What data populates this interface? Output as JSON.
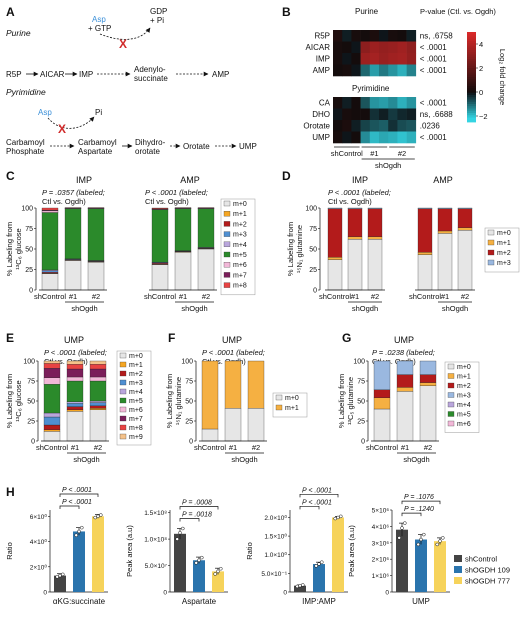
{
  "panels": {
    "A": {
      "letter": "A",
      "purine": {
        "title": "Purine",
        "asp": "Asp",
        "gtp": "+ GTP",
        "gdp": "GDP",
        "pi": "+ Pi",
        "r5p": "R5P",
        "aicar": "AICAR",
        "imp": "IMP",
        "adenylo1": "Adenylo-",
        "adenylo2": "succinate",
        "amp": "AMP"
      },
      "pyrimidine": {
        "title": "Pyrimidine",
        "asp": "Asp",
        "pi": "Pi",
        "carb1": "Carbamoyl",
        "carb2": "Phosphate",
        "ca1": "Carbamoyl",
        "ca2": "Aspartate",
        "dho1": "Dihydro-",
        "dho2": "orotate",
        "orotate": "Orotate",
        "ump": "UMP"
      },
      "x_mark": "X",
      "colors": {
        "asp": "#3a8fd8",
        "x": "#d12b2b"
      }
    },
    "B": {
      "letter": "B",
      "purine_title": "Purine",
      "pyrimidine_title": "Pyrimidine",
      "pvalue_header": "P-value (Ctl. vs. Ogdh)",
      "purine_rows": [
        {
          "label": "R5P",
          "p": "ns, .6758",
          "values": [
            0.3,
            -0.2,
            0.1,
            0.0,
            0.2,
            -0.1,
            0.1,
            0.0,
            -0.2
          ]
        },
        {
          "label": "AICAR",
          "p": "< .0001",
          "values": [
            0.1,
            0.0,
            -0.1,
            3.0,
            3.4,
            3.2,
            3.3,
            3.5,
            3.1
          ]
        },
        {
          "label": "IMP",
          "p": "< .0001",
          "values": [
            0.1,
            -0.1,
            0.0,
            3.4,
            3.6,
            3.3,
            3.5,
            3.6,
            3.2
          ]
        },
        {
          "label": "AMP",
          "p": "< .0001",
          "values": [
            0.0,
            0.1,
            -0.1,
            -1.0,
            -1.6,
            -1.2,
            -1.5,
            -1.8,
            -1.3
          ]
        }
      ],
      "pyrimidine_rows": [
        {
          "label": "CA",
          "p": "< .0001",
          "values": [
            0.1,
            -0.2,
            0.0,
            -0.8,
            -1.5,
            -1.6,
            -1.4,
            -1.8,
            -1.5
          ]
        },
        {
          "label": "DHO",
          "p": "ns, .6688",
          "values": [
            -0.1,
            0.1,
            0.0,
            0.0,
            -0.4,
            -0.2,
            -0.5,
            -0.3,
            -0.2
          ]
        },
        {
          "label": "Orotate",
          "p": ".0236",
          "values": [
            0.0,
            0.2,
            -0.2,
            -0.6,
            -0.8,
            -0.9,
            -0.4,
            -0.7,
            -0.8
          ]
        },
        {
          "label": "UMP",
          "p": "< .0001",
          "values": [
            0.1,
            -0.1,
            0.0,
            -1.4,
            -1.9,
            -1.7,
            -1.8,
            -2.0,
            -1.8
          ]
        }
      ],
      "xgroups": [
        "shControl",
        "#1",
        "#2"
      ],
      "xgroup_parent": "shOgdh",
      "colorbar": {
        "label": "Log₂ fold change",
        "ticks": [
          "4",
          "2",
          "0",
          "−2"
        ],
        "min": -2.5,
        "max": 5
      }
    },
    "C": {
      "letter": "C",
      "sub1": "IMP",
      "sub2": "AMP",
      "ann1": "P = .0357 (labeled;",
      "ann2": "Ctl vs. Ogdh)",
      "ann3": "P < .0001 (labeled;",
      "ann4": "Ctl vs. Ogdh)",
      "ylabel1": "% Labeling from",
      "ylabel2": "¹³C₆ glucose",
      "yticks": [
        "0",
        "25",
        "50",
        "75",
        "100"
      ],
      "xgroups": [
        "shControl",
        "#1",
        "#2"
      ],
      "xgroup_parent": "shOgdh",
      "legend": [
        "m+0",
        "m+1",
        "m+2",
        "m+3",
        "m+4",
        "m+5",
        "m+6",
        "m+7",
        "m+8"
      ]
    },
    "D": {
      "letter": "D",
      "sub1": "IMP",
      "sub2": "AMP",
      "ann1": "P < .0001 (labeled;",
      "ann2": "Ctl vs. Ogdh)",
      "ylabel1": "% Labeling from",
      "ylabel2": "¹⁵N₁ glutamine",
      "yticks": [
        "0",
        "25",
        "50",
        "75",
        "100"
      ],
      "xgroups": [
        "shControl",
        "#1",
        "#2"
      ],
      "xgroup_parent": "shOgdh",
      "legend": [
        "m+0",
        "m+1",
        "m+2",
        "m+3"
      ]
    },
    "E": {
      "letter": "E",
      "title": "UMP",
      "ann1": "P < .0001 (labeled;",
      "ann2": "Ctl vs. Ogdh)",
      "ylabel1": "% Labeling from",
      "ylabel2": "¹³C₆ glucose",
      "yticks": [
        "0",
        "25",
        "50",
        "75",
        "100"
      ],
      "xgroups": [
        "shControl",
        "#1",
        "#2"
      ],
      "xgroup_parent": "shOgdh",
      "legend": [
        "m+0",
        "m+1",
        "m+2",
        "m+3",
        "m+4",
        "m+5",
        "m+6",
        "m+7",
        "m+8",
        "m+9"
      ]
    },
    "F": {
      "letter": "F",
      "title": "UMP",
      "ann1": "P < .0001 (labeled;",
      "ann2": "Ctl vs. Ogdh)",
      "ylabel1": "% Labeling from",
      "ylabel2": "¹⁵N₁ glutamine",
      "yticks": [
        "0",
        "25",
        "50",
        "75",
        "100"
      ],
      "xgroups": [
        "shControl",
        "#1",
        "#2"
      ],
      "xgroup_parent": "shOgdh",
      "legend": [
        "m+0",
        "m+1"
      ]
    },
    "G": {
      "letter": "G",
      "title": "UMP",
      "ann1": "P = .0238 (labeled;",
      "ann2": "Ctl vs. Ogdh)",
      "ylabel1": "% Labeling from",
      "ylabel2": "¹³C₅ glutamine",
      "yticks": [
        "0",
        "25",
        "50",
        "75",
        "100"
      ],
      "xgroups": [
        "shControl",
        "#1",
        "#2"
      ],
      "xgroup_parent": "shOgdh",
      "legend": [
        "m+0",
        "m+1",
        "m+2",
        "m+3",
        "m+4",
        "m+5",
        "m+6"
      ]
    },
    "H": {
      "letter": "H",
      "legend": [
        "shControl",
        "shOGDH 109",
        "shOGDH 777"
      ],
      "colors": [
        "#444444",
        "#2a74ad",
        "#f6d35b"
      ],
      "p1": {
        "ylabel": "Ratio",
        "xlabel": "αKG:succinate",
        "yticks": [
          "0",
          "2×10⁰",
          "4×10⁰",
          "6×10⁰"
        ],
        "pvals": [
          "P < .0001",
          "P < .0001"
        ]
      },
      "p2": {
        "ylabel": "Peak area (a.u)",
        "xlabel": "Aspartate",
        "yticks": [
          "0",
          "5.0×10⁷",
          "1.0×10⁸",
          "1.5×10⁸"
        ],
        "pvals": [
          "P = .0008",
          "P = .0018"
        ]
      },
      "p3": {
        "ylabel": "Ratio",
        "xlabel": "IMP:AMP",
        "yticks": [
          "0",
          "5.0×10⁻¹",
          "1.0×10⁰",
          "1.5×10⁰",
          "2.0×10⁰"
        ],
        "pvals": [
          "P < .0001",
          "P < .0001"
        ]
      },
      "p4": {
        "ylabel": "Peak area (a.u)",
        "xlabel": "UMP",
        "yticks": [
          "0",
          "1×10⁶",
          "2×10⁶",
          "3×10⁶",
          "4×10⁶",
          "5×10⁶"
        ],
        "pvals": [
          "P = .1076",
          "P = .1240"
        ]
      }
    }
  },
  "chart_data": [
    {
      "type": "heatmap",
      "title": "",
      "rows": [
        "R5P",
        "AICAR",
        "IMP",
        "AMP",
        "CA",
        "DHO",
        "Orotate",
        "UMP"
      ],
      "columns_groups": [
        "shControl",
        "#1",
        "#2"
      ],
      "color_label": "Log₂ fold change",
      "range": [
        -2,
        5
      ]
    },
    {
      "type": "bar",
      "stacked": true,
      "panel": "C-IMP",
      "categories": [
        "shControl",
        "#1",
        "#2"
      ],
      "series": [
        {
          "name": "m+0",
          "values": [
            20,
            36,
            34
          ]
        },
        {
          "name": "m+1",
          "values": [
            0.5,
            0.5,
            0.5
          ]
        },
        {
          "name": "m+2",
          "values": [
            1,
            0.5,
            0.5
          ]
        },
        {
          "name": "m+3",
          "values": [
            2,
            0.5,
            0.5
          ]
        },
        {
          "name": "m+4",
          "values": [
            1,
            0.5,
            0.5
          ]
        },
        {
          "name": "m+5",
          "values": [
            70,
            61,
            63
          ]
        },
        {
          "name": "m+6",
          "values": [
            2,
            0.5,
            0.5
          ]
        },
        {
          "name": "m+7",
          "values": [
            1,
            0.5,
            0.5
          ]
        },
        {
          "name": "m+8",
          "values": [
            2.5,
            0.5,
            0.5
          ]
        }
      ],
      "ylim": [
        0,
        100
      ]
    },
    {
      "type": "bar",
      "stacked": true,
      "panel": "C-AMP",
      "categories": [
        "shControl",
        "#1",
        "#2"
      ],
      "series": [
        {
          "name": "m+0",
          "values": [
            31,
            46,
            50
          ]
        },
        {
          "name": "m+1",
          "values": [
            0.5,
            0.5,
            0.5
          ]
        },
        {
          "name": "m+2",
          "values": [
            1,
            0.5,
            0.5
          ]
        },
        {
          "name": "m+3",
          "values": [
            1,
            0.5,
            0.5
          ]
        },
        {
          "name": "m+4",
          "values": [
            0.5,
            0.5,
            0.5
          ]
        },
        {
          "name": "m+5",
          "values": [
            64,
            51,
            47
          ]
        },
        {
          "name": "m+6",
          "values": [
            0.5,
            0.5,
            0.5
          ]
        },
        {
          "name": "m+7",
          "values": [
            0.5,
            0.5,
            0.5
          ]
        },
        {
          "name": "m+8",
          "values": [
            1,
            0.5,
            0.5
          ]
        }
      ],
      "ylim": [
        0,
        100
      ]
    },
    {
      "type": "bar",
      "stacked": true,
      "panel": "D-IMP",
      "categories": [
        "shControl",
        "#1",
        "#2"
      ],
      "series": [
        {
          "name": "m+0",
          "values": [
            37,
            62,
            62
          ]
        },
        {
          "name": "m+1",
          "values": [
            3,
            3,
            3
          ]
        },
        {
          "name": "m+2",
          "values": [
            59,
            34,
            34
          ]
        },
        {
          "name": "m+3",
          "values": [
            1,
            1,
            1
          ]
        }
      ],
      "ylim": [
        0,
        100
      ]
    },
    {
      "type": "bar",
      "stacked": true,
      "panel": "D-AMP",
      "categories": [
        "shControl",
        "#1",
        "#2"
      ],
      "series": [
        {
          "name": "m+0",
          "values": [
            43,
            69,
            73
          ]
        },
        {
          "name": "m+1",
          "values": [
            3,
            3,
            3
          ]
        },
        {
          "name": "m+2",
          "values": [
            53,
            27,
            23
          ]
        },
        {
          "name": "m+3",
          "values": [
            1,
            1,
            1
          ]
        }
      ],
      "ylim": [
        0,
        100
      ]
    },
    {
      "type": "bar",
      "stacked": true,
      "panel": "E-UMP",
      "categories": [
        "shControl",
        "#1",
        "#2"
      ],
      "series": [
        {
          "name": "m+0",
          "values": [
            12,
            37,
            39
          ]
        },
        {
          "name": "m+1",
          "values": [
            2,
            2,
            2
          ]
        },
        {
          "name": "m+2",
          "values": [
            6,
            4,
            3
          ]
        },
        {
          "name": "m+3",
          "values": [
            10,
            4,
            4
          ]
        },
        {
          "name": "m+4",
          "values": [
            5,
            2,
            2
          ]
        },
        {
          "name": "m+5",
          "values": [
            36,
            26,
            25
          ]
        },
        {
          "name": "m+6",
          "values": [
            8,
            5,
            5
          ]
        },
        {
          "name": "m+7",
          "values": [
            12,
            10,
            10
          ]
        },
        {
          "name": "m+8",
          "values": [
            6,
            6,
            6
          ]
        },
        {
          "name": "m+9",
          "values": [
            3,
            4,
            4
          ]
        }
      ],
      "ylim": [
        0,
        100
      ]
    },
    {
      "type": "bar",
      "stacked": true,
      "panel": "F-UMP",
      "categories": [
        "shControl",
        "#1",
        "#2"
      ],
      "series": [
        {
          "name": "m+0",
          "values": [
            15,
            41,
            41
          ]
        },
        {
          "name": "m+1",
          "values": [
            85,
            59,
            59
          ]
        }
      ],
      "ylim": [
        0,
        100
      ]
    },
    {
      "type": "bar",
      "stacked": true,
      "panel": "G-UMP",
      "categories": [
        "shControl",
        "#1",
        "#2"
      ],
      "series": [
        {
          "name": "m+0",
          "values": [
            40,
            62,
            69
          ]
        },
        {
          "name": "m+1",
          "values": [
            14,
            5,
            4
          ]
        },
        {
          "name": "m+2",
          "values": [
            10,
            16,
            10
          ]
        },
        {
          "name": "m+3",
          "values": [
            36,
            17,
            17
          ]
        },
        {
          "name": "m+4",
          "values": [
            0,
            0,
            0
          ]
        },
        {
          "name": "m+5",
          "values": [
            0,
            0,
            0
          ]
        },
        {
          "name": "m+6",
          "values": [
            0,
            0,
            0
          ]
        }
      ],
      "ylim": [
        0,
        100
      ]
    },
    {
      "type": "bar",
      "panel": "H-αKG:succinate",
      "categories": [
        "shControl",
        "shOGDH 109",
        "shOGDH 777"
      ],
      "values": [
        1.3,
        4.8,
        6.0
      ],
      "errors": [
        0.15,
        0.3,
        0.15
      ],
      "points": [
        [
          1.2,
          1.3,
          1.4
        ],
        [
          4.5,
          4.8,
          5.1
        ],
        [
          5.9,
          6.0,
          6.1
        ]
      ],
      "ylim": [
        0,
        6.5
      ]
    },
    {
      "type": "bar",
      "panel": "H-Aspartate",
      "categories": [
        "shControl",
        "shOGDH 109",
        "shOGDH 777"
      ],
      "values": [
        110000000.0,
        60000000.0,
        39000000.0
      ],
      "errors": [
        10000000.0,
        6000000.0,
        6000000.0
      ],
      "points": [
        [
          100000000.0,
          112000000.0,
          120000000.0
        ],
        [
          55000000.0,
          60000000.0,
          65000000.0
        ],
        [
          34000000.0,
          39000000.0,
          44000000.0
        ]
      ],
      "ylim": [
        0,
        150000000.0
      ]
    },
    {
      "type": "bar",
      "panel": "H-IMP:AMP",
      "categories": [
        "shControl",
        "shOGDH 109",
        "shOGDH 777"
      ],
      "values": [
        0.17,
        0.75,
        2.0
      ],
      "errors": [
        0.02,
        0.05,
        0.03
      ],
      "points": [
        [
          0.15,
          0.17,
          0.19
        ],
        [
          0.7,
          0.75,
          0.8
        ],
        [
          1.97,
          2.0,
          2.03
        ]
      ],
      "ylim": [
        0,
        2.2
      ]
    },
    {
      "type": "bar",
      "panel": "H-UMP",
      "categories": [
        "shControl",
        "shOGDH 109",
        "shOGDH 777"
      ],
      "values": [
        3800000.0,
        3200000.0,
        3100000.0
      ],
      "errors": [
        400000.0,
        300000.0,
        200000.0
      ],
      "points": [
        [
          3300000.0,
          3900000.0,
          4200000.0
        ],
        [
          2900000.0,
          3200000.0,
          3500000.0
        ],
        [
          2900000.0,
          3100000.0,
          3300000.0
        ]
      ],
      "ylim": [
        0,
        5000000.0
      ]
    }
  ],
  "colors": {
    "m0": "#e6e6e6",
    "m1": "#f5a623",
    "m2": "#b31b1b",
    "m3": "#4f8fd1",
    "m4": "#b9a6dc",
    "m5": "#2b8a2b",
    "m6": "#f2b8d8",
    "m7": "#7b1e5a",
    "m8": "#e84343",
    "m9": "#f4c28a",
    "m1_glut": "#f5b042",
    "m3_glut": "#9ab8e0"
  }
}
